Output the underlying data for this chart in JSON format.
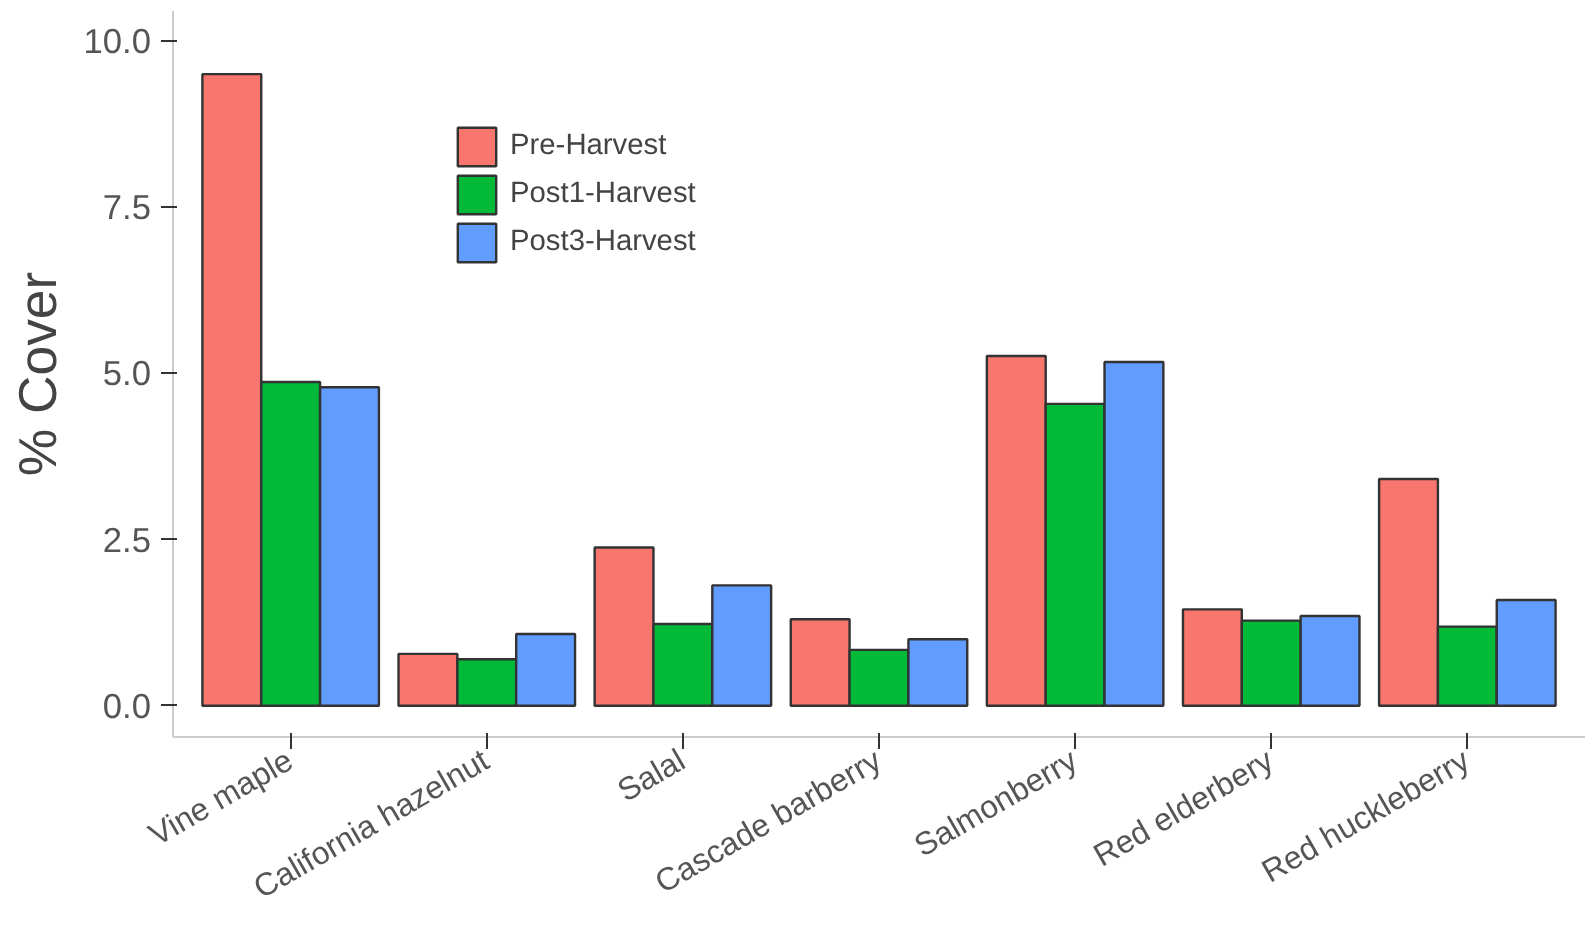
{
  "chart_data": {
    "type": "bar",
    "ylabel": "% Cover",
    "categories": [
      "Vine maple",
      "California hazelnut",
      "Salal",
      "Cascade barberry",
      "Salmonberry",
      "Red elderbery",
      "Red huckleberry"
    ],
    "series": [
      {
        "name": "Pre-Harvest",
        "color": "#f8766d",
        "values": [
          9.5,
          0.78,
          2.38,
          1.3,
          5.26,
          1.45,
          3.41
        ]
      },
      {
        "name": "Post1-Harvest",
        "color": "#00ba38",
        "values": [
          4.87,
          0.7,
          1.23,
          0.84,
          4.54,
          1.28,
          1.19
        ]
      },
      {
        "name": "Post3-Harvest",
        "color": "#619cff",
        "values": [
          4.79,
          1.08,
          1.81,
          1.0,
          5.17,
          1.35,
          1.59
        ]
      }
    ],
    "ylim": [
      -0.47,
      10.45
    ],
    "yticks": [
      {
        "value": 0,
        "label": "0.0"
      },
      {
        "value": 2.5,
        "label": "2.5"
      },
      {
        "value": 5,
        "label": "5.0"
      },
      {
        "value": 7.5,
        "label": "7.5"
      },
      {
        "value": 10,
        "label": "10.0"
      }
    ],
    "grid": false,
    "legend": "top left"
  }
}
